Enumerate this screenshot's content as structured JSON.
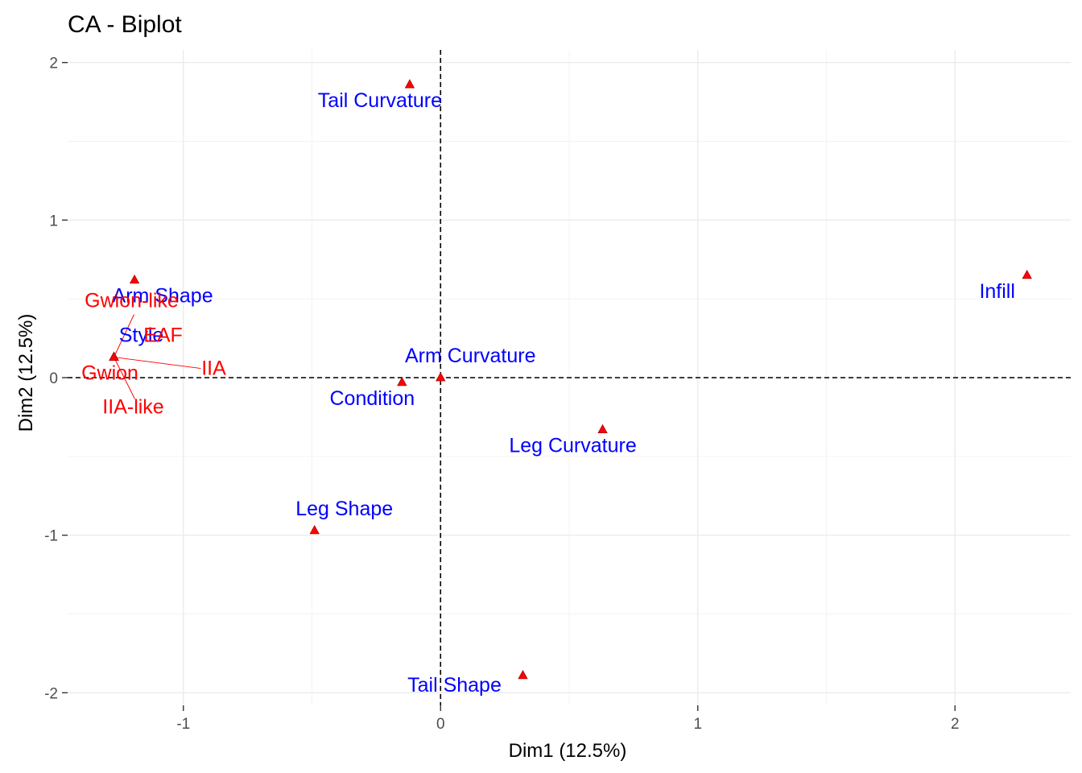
{
  "chart_data": {
    "type": "scatter",
    "title": "CA - Biplot",
    "xlabel": "Dim1 (12.5%)",
    "ylabel": "Dim2 (12.5%)",
    "xlim": [
      -1.45,
      2.45
    ],
    "ylim": [
      -2.08,
      2.08
    ],
    "x_ticks": [
      -1,
      0,
      1,
      2
    ],
    "y_ticks": [
      -2,
      -1,
      0,
      1,
      2
    ],
    "grid": true,
    "reference_lines": {
      "x": 0,
      "y": 0,
      "style": "dashed"
    },
    "colors": {
      "columns": "#0000ff",
      "rows": "#ff0000",
      "points": "#ff0000"
    },
    "series": [
      {
        "color": "#0000ff",
        "points": [
          {
            "label": "Tail Curvature",
            "x": -0.12,
            "y": 1.86
          },
          {
            "label": "Arm Shape",
            "x": -1.19,
            "y": 0.62
          },
          {
            "label": "Style",
            "x": -1.27,
            "y": 0.13
          },
          {
            "label": "Infill",
            "x": 2.28,
            "y": 0.65
          },
          {
            "label": "Arm Curvature",
            "x": 0.0,
            "y": 0.0
          },
          {
            "label": "Condition",
            "x": -0.15,
            "y": -0.03
          },
          {
            "label": "Leg Curvature",
            "x": 0.63,
            "y": -0.33
          },
          {
            "label": "Leg Shape",
            "x": -0.49,
            "y": -0.97
          },
          {
            "label": "Tail Shape",
            "x": 0.32,
            "y": -1.89
          }
        ]
      },
      {
        "color": "#ff0000",
        "points": [
          {
            "label": "Gwion-like",
            "x": -1.27,
            "y": 0.13
          },
          {
            "label": "EAF",
            "x": -1.27,
            "y": 0.13
          },
          {
            "label": "IIA",
            "x": -1.27,
            "y": 0.13
          },
          {
            "label": "Gwion",
            "x": -1.27,
            "y": 0.13
          },
          {
            "label": "IIA-like",
            "x": -1.27,
            "y": 0.13
          }
        ]
      }
    ]
  }
}
